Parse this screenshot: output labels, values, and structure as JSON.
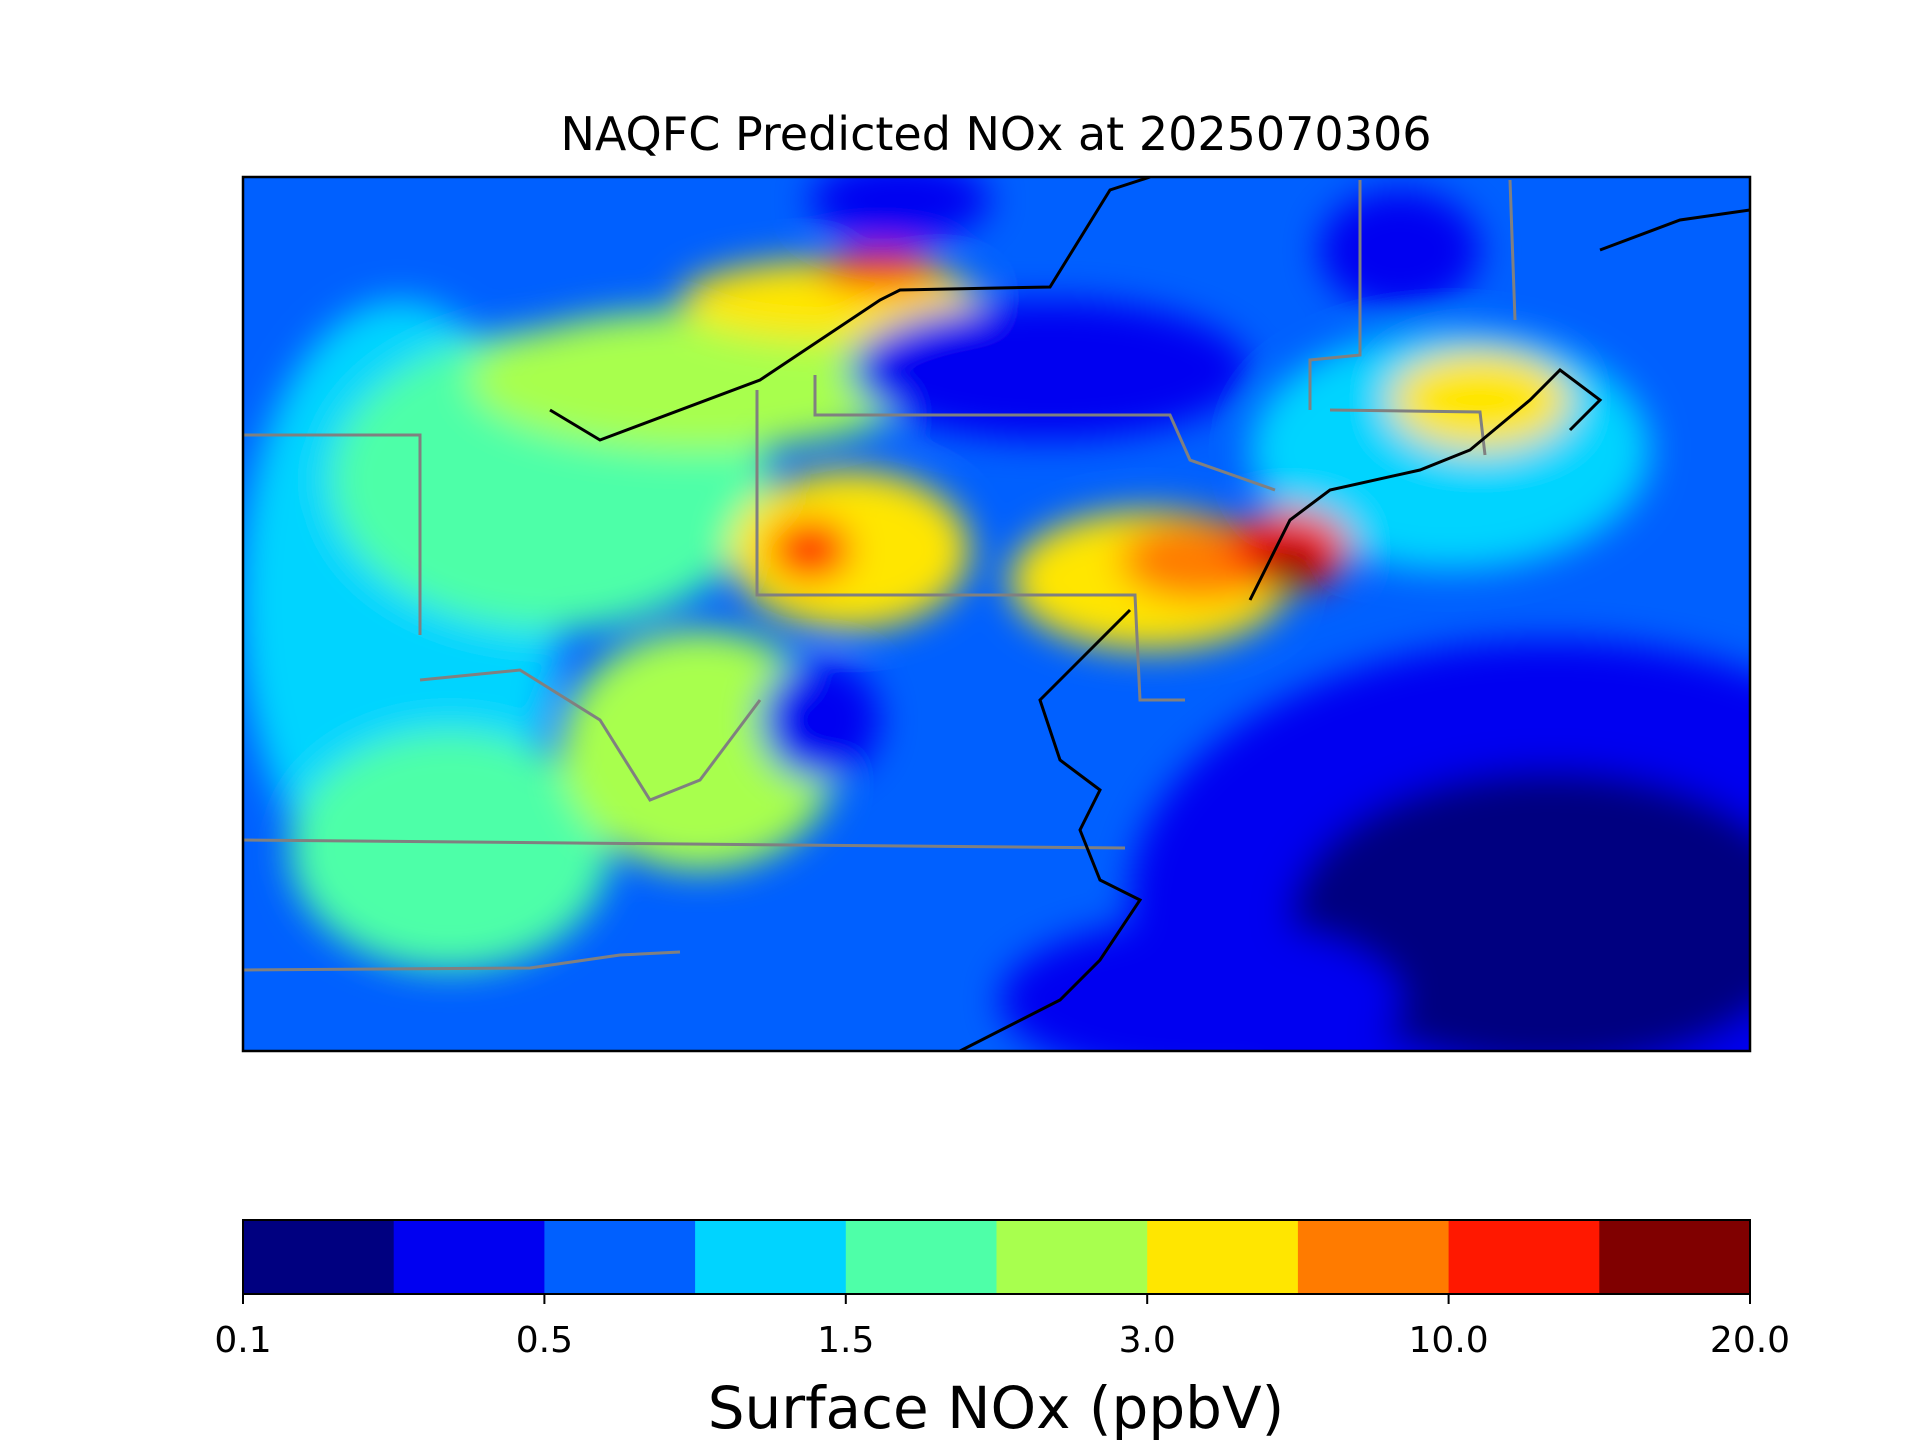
{
  "chart_data": {
    "type": "map",
    "title": "NAQFC Predicted NOx at 2025070306",
    "colorbar": {
      "label": "Surface NOx (ppbV)",
      "colors": [
        "#000080",
        "#0000f1",
        "#0060ff",
        "#00d4ff",
        "#4effa8",
        "#a8ff4e",
        "#ffe600",
        "#ff7b00",
        "#ff1800",
        "#800000"
      ],
      "ticks": [
        0.1,
        0.5,
        1.5,
        {
          "value": 3,
          "label": "3.0"
        },
        {
          "value": 10,
          "label": "10.0"
        },
        {
          "value": 20,
          "label": "20.0"
        }
      ]
    }
  }
}
